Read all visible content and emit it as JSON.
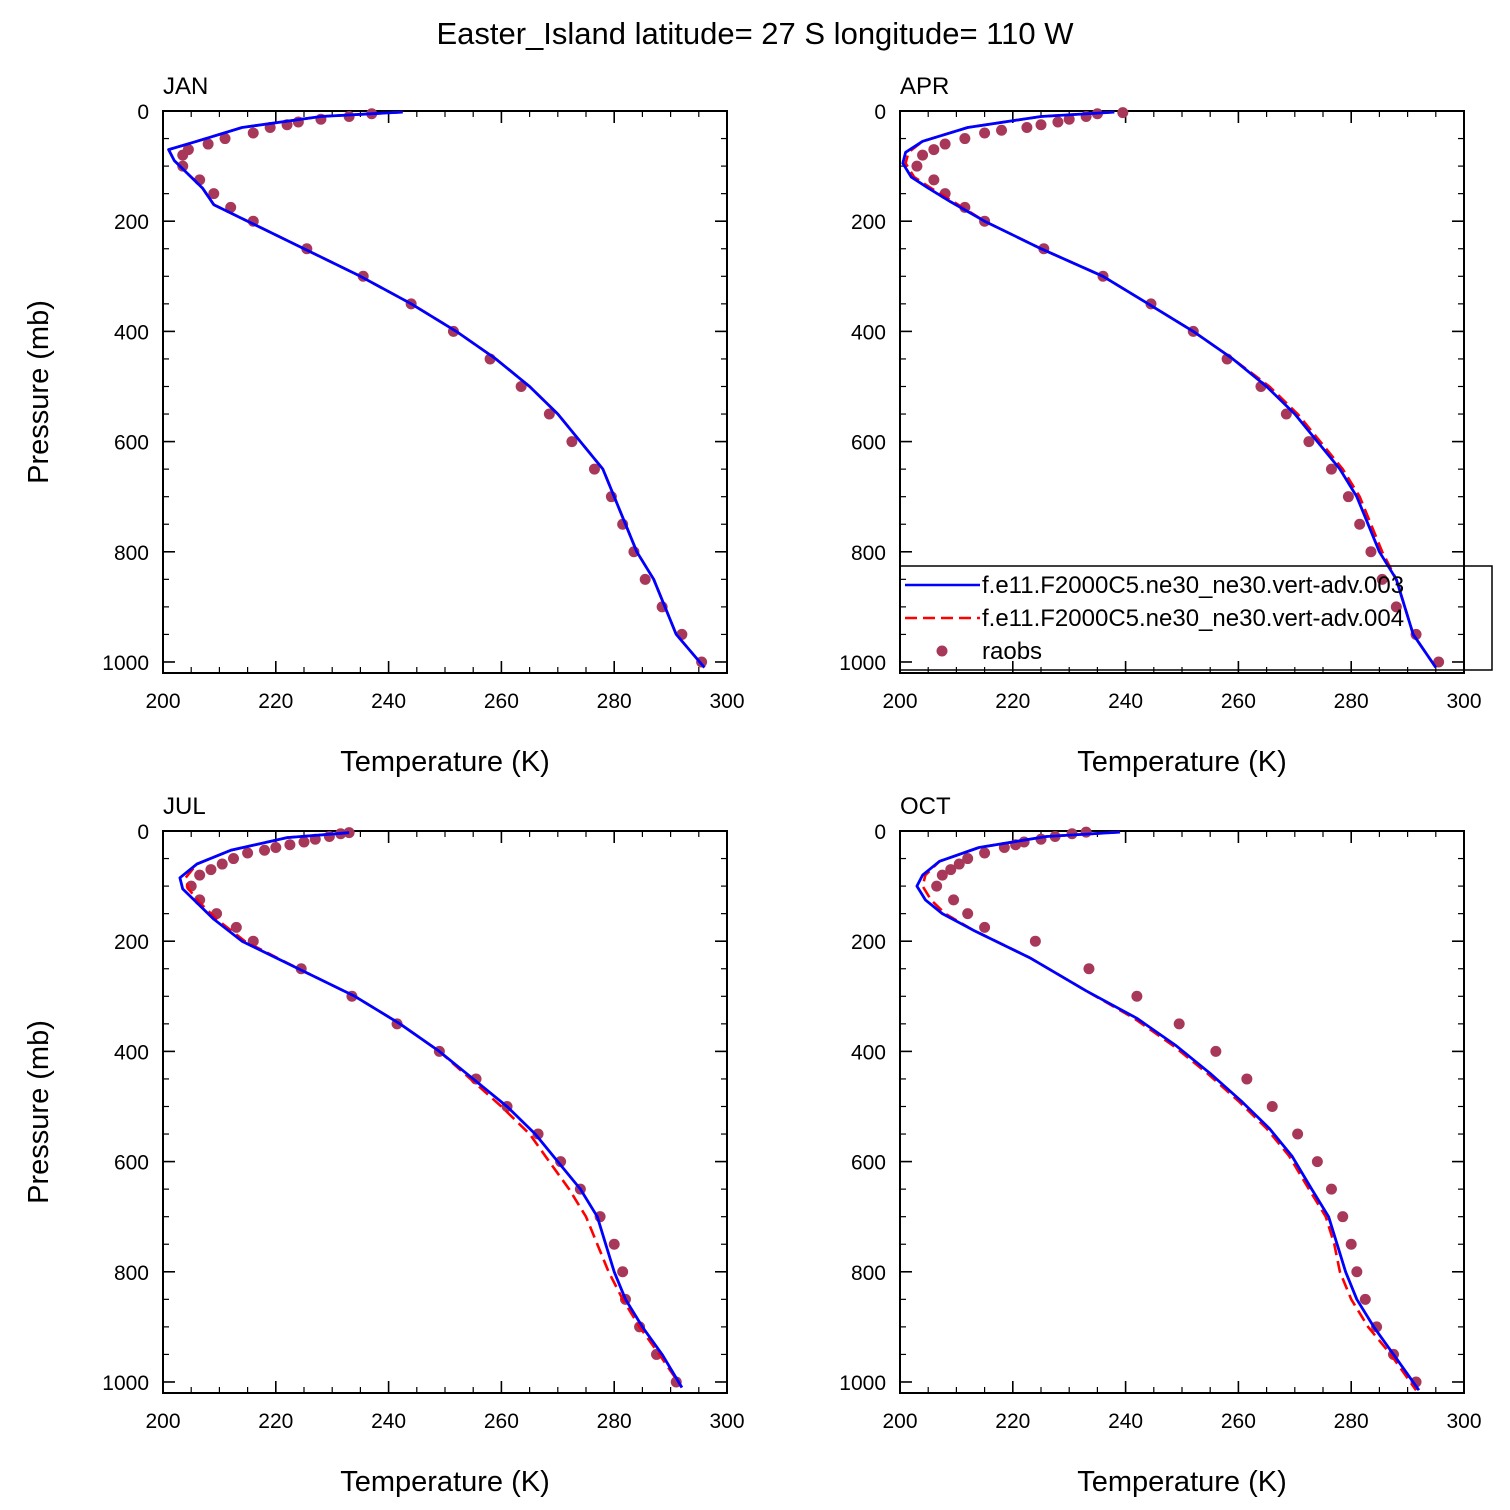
{
  "figure": {
    "title": "Easter_Island  latitude= 27 S longitude= 110 W"
  },
  "colors": {
    "model_003": "#0000ff",
    "model_004": "#ff0000",
    "raobs": "#a8385a",
    "axis": "#000000"
  },
  "legend": {
    "panel": "APR",
    "placement": "lower-right",
    "entries": [
      {
        "label": "f.e11.F2000C5.ne30_ne30.vert-adv.003",
        "style": "solid-line",
        "color": "#0000ff"
      },
      {
        "label": "f.e11.F2000C5.ne30_ne30.vert-adv.004",
        "style": "dashed-line",
        "color": "#ff0000"
      },
      {
        "label": "raobs",
        "style": "marker",
        "color": "#a8385a"
      }
    ]
  },
  "chart_data": [
    {
      "type": "line",
      "title": "JAN",
      "xlabel": "Temperature (K)",
      "ylabel": "Pressure (mb)",
      "xlim": [
        200,
        300
      ],
      "ylim": [
        1020,
        0
      ],
      "xticks": [
        200,
        220,
        240,
        260,
        280,
        300
      ],
      "yticks": [
        0,
        200,
        400,
        600,
        800,
        1000
      ],
      "series": [
        {
          "name": "f.e11.F2000C5.ne30_ne30.vert-adv.003",
          "style": "solid",
          "x": [
            242.5,
            228,
            214,
            206,
            201,
            202,
            205,
            207,
            209,
            215,
            225,
            235,
            244,
            252,
            259,
            265,
            270,
            274,
            278,
            280,
            282,
            284,
            287,
            291,
            296
          ],
          "y": [
            2,
            10,
            30,
            55,
            70,
            90,
            120,
            140,
            170,
            200,
            250,
            300,
            350,
            400,
            450,
            500,
            550,
            600,
            650,
            700,
            750,
            800,
            850,
            950,
            1010
          ]
        },
        {
          "name": "f.e11.F2000C5.ne30_ne30.vert-adv.004",
          "style": "dashed",
          "x": [
            242.5,
            228,
            214,
            206,
            201,
            202,
            205,
            207,
            209,
            215,
            225,
            235,
            244,
            252,
            259,
            265,
            270,
            274,
            278,
            280,
            282,
            284,
            287,
            291,
            296
          ],
          "y": [
            2,
            10,
            30,
            55,
            70,
            90,
            120,
            140,
            170,
            200,
            250,
            300,
            350,
            400,
            450,
            500,
            550,
            600,
            650,
            700,
            750,
            800,
            850,
            950,
            1010
          ]
        },
        {
          "name": "raobs",
          "style": "marker",
          "x": [
            237,
            233,
            228,
            224,
            222,
            219,
            216,
            211,
            208,
            204.5,
            203.5,
            203.5,
            206.5,
            209,
            212,
            216,
            225.5,
            235.5,
            244,
            251.5,
            258,
            263.5,
            268.5,
            272.5,
            276.5,
            279.5,
            281.5,
            283.5,
            285.5,
            288.5,
            292,
            295.5
          ],
          "y": [
            5,
            10,
            15,
            20,
            25,
            30,
            40,
            50,
            60,
            70,
            80,
            100,
            125,
            150,
            175,
            200,
            250,
            300,
            350,
            400,
            450,
            500,
            550,
            600,
            650,
            700,
            750,
            800,
            850,
            900,
            950,
            1000
          ]
        }
      ]
    },
    {
      "type": "line",
      "title": "APR",
      "xlabel": "Temperature (K)",
      "ylabel": "",
      "xlim": [
        200,
        300
      ],
      "ylim": [
        1020,
        0
      ],
      "xticks": [
        200,
        220,
        240,
        260,
        280,
        300
      ],
      "yticks": [
        0,
        200,
        400,
        600,
        800,
        1000
      ],
      "series": [
        {
          "name": "f.e11.F2000C5.ne30_ne30.vert-adv.003",
          "style": "solid",
          "x": [
            238,
            225,
            212,
            204,
            201,
            200.5,
            202,
            205,
            209,
            215,
            225,
            236,
            244,
            252,
            259,
            265,
            270,
            274,
            278,
            281,
            283,
            285,
            288,
            291,
            295
          ],
          "y": [
            2,
            10,
            30,
            55,
            75,
            95,
            120,
            140,
            165,
            200,
            250,
            300,
            350,
            400,
            450,
            500,
            550,
            600,
            650,
            700,
            750,
            800,
            850,
            950,
            1010
          ]
        },
        {
          "name": "f.e11.F2000C5.ne30_ne30.vert-adv.004",
          "style": "dashed",
          "x": [
            238,
            225,
            212,
            204,
            201.5,
            201,
            202.5,
            205.5,
            209.5,
            215,
            225,
            236,
            244,
            252,
            259,
            265.5,
            270.5,
            274.5,
            278.5,
            281.5,
            283.5,
            285.5,
            288,
            291,
            295
          ],
          "y": [
            2,
            10,
            30,
            55,
            75,
            95,
            120,
            140,
            165,
            200,
            250,
            300,
            350,
            400,
            450,
            500,
            550,
            600,
            650,
            700,
            750,
            800,
            850,
            950,
            1010
          ]
        },
        {
          "name": "raobs",
          "style": "marker",
          "x": [
            239.5,
            235,
            233,
            230,
            228,
            225,
            222.5,
            218,
            215,
            211.5,
            208,
            206,
            204,
            203,
            206,
            208,
            211.5,
            215,
            225.5,
            236,
            244.5,
            252,
            258,
            264,
            268.5,
            272.5,
            276.5,
            279.5,
            281.5,
            283.5,
            285.5,
            288,
            291.5,
            295.5
          ],
          "y": [
            3,
            5,
            10,
            15,
            20,
            25,
            30,
            35,
            40,
            50,
            60,
            70,
            80,
            100,
            125,
            150,
            175,
            200,
            250,
            300,
            350,
            400,
            450,
            500,
            550,
            600,
            650,
            700,
            750,
            800,
            850,
            900,
            950,
            1000
          ]
        }
      ]
    },
    {
      "type": "line",
      "title": "JUL",
      "xlabel": "Temperature (K)",
      "ylabel": "Pressure (mb)",
      "xlim": [
        200,
        300
      ],
      "ylim": [
        1020,
        0
      ],
      "xticks": [
        200,
        220,
        240,
        260,
        280,
        300
      ],
      "yticks": [
        0,
        200,
        400,
        600,
        800,
        1000
      ],
      "series": [
        {
          "name": "f.e11.F2000C5.ne30_ne30.vert-adv.003",
          "style": "solid",
          "x": [
            233,
            222,
            212,
            206,
            203,
            203.5,
            206,
            209,
            214,
            224,
            234,
            242,
            249,
            255,
            261,
            266,
            270,
            274,
            277,
            278.5,
            280,
            282,
            285,
            288.5,
            292
          ],
          "y": [
            3,
            12,
            35,
            60,
            85,
            105,
            130,
            160,
            200,
            250,
            300,
            350,
            400,
            450,
            500,
            550,
            600,
            650,
            700,
            750,
            800,
            850,
            900,
            950,
            1010
          ]
        },
        {
          "name": "f.e11.F2000C5.ne30_ne30.vert-adv.004",
          "style": "dashed",
          "x": [
            233,
            222,
            212,
            206,
            204,
            204.5,
            206.5,
            209.5,
            214.5,
            224,
            234,
            242,
            249,
            254.5,
            260,
            265,
            268.5,
            272,
            275,
            277,
            279,
            281.5,
            284.5,
            288,
            292
          ],
          "y": [
            3,
            12,
            35,
            60,
            85,
            105,
            130,
            160,
            200,
            250,
            300,
            350,
            400,
            450,
            500,
            550,
            600,
            650,
            700,
            750,
            800,
            850,
            900,
            950,
            1010
          ]
        },
        {
          "name": "raobs",
          "style": "marker",
          "x": [
            233,
            231.5,
            229.5,
            227,
            225,
            222.5,
            220,
            218,
            215,
            212.5,
            210.5,
            208.5,
            206.5,
            205,
            206.5,
            209.5,
            213,
            216,
            224.5,
            233.5,
            241.5,
            249,
            255.5,
            261,
            266.5,
            270.5,
            274,
            277.5,
            280,
            281.5,
            282,
            284.5,
            287.5,
            291
          ],
          "y": [
            3,
            5,
            10,
            15,
            20,
            25,
            30,
            35,
            40,
            50,
            60,
            70,
            80,
            100,
            125,
            150,
            175,
            200,
            250,
            300,
            350,
            400,
            450,
            500,
            550,
            600,
            650,
            700,
            750,
            800,
            850,
            900,
            950,
            1000
          ]
        }
      ]
    },
    {
      "type": "line",
      "title": "OCT",
      "xlabel": "Temperature (K)",
      "ylabel": "",
      "xlim": [
        200,
        300
      ],
      "ylim": [
        1020,
        0
      ],
      "xticks": [
        200,
        220,
        240,
        260,
        280,
        300
      ],
      "yticks": [
        0,
        200,
        400,
        600,
        800,
        1000
      ],
      "series": [
        {
          "name": "f.e11.F2000C5.ne30_ne30.vert-adv.003",
          "style": "solid",
          "x": [
            239,
            226,
            214,
            207,
            204,
            203,
            204.5,
            207.5,
            213,
            223,
            233,
            242,
            249,
            255,
            260.5,
            265.5,
            269.5,
            273,
            276,
            277.5,
            279,
            281,
            284,
            287.5,
            292
          ],
          "y": [
            2,
            10,
            30,
            55,
            80,
            100,
            125,
            150,
            180,
            230,
            290,
            340,
            390,
            440,
            490,
            540,
            590,
            650,
            700,
            750,
            800,
            850,
            900,
            950,
            1015
          ]
        },
        {
          "name": "f.e11.F2000C5.ne30_ne30.vert-adv.004",
          "style": "dashed",
          "x": [
            239,
            226,
            214,
            207,
            204.5,
            204,
            205.5,
            208,
            213,
            223,
            233,
            241.5,
            248.5,
            254.5,
            260,
            265,
            269,
            272.5,
            275.5,
            277,
            278,
            280,
            283,
            287,
            291.5
          ],
          "y": [
            2,
            10,
            30,
            55,
            80,
            100,
            125,
            150,
            180,
            230,
            290,
            340,
            390,
            440,
            490,
            540,
            590,
            650,
            700,
            750,
            800,
            850,
            900,
            950,
            1015
          ]
        },
        {
          "name": "raobs",
          "style": "marker",
          "x": [
            233,
            230.5,
            227.5,
            225,
            222,
            220.5,
            218.5,
            215,
            212,
            210.5,
            209,
            207.5,
            206.5,
            209.5,
            212,
            215,
            224,
            233.5,
            242,
            249.5,
            256,
            261.5,
            266,
            270.5,
            274,
            276.5,
            278.5,
            280,
            281,
            282.5,
            284.5,
            287.5,
            291.5
          ],
          "y": [
            2,
            5,
            10,
            15,
            20,
            25,
            30,
            40,
            50,
            60,
            70,
            80,
            100,
            125,
            150,
            175,
            200,
            250,
            300,
            350,
            400,
            450,
            500,
            550,
            600,
            650,
            700,
            750,
            800,
            850,
            900,
            950,
            1000
          ]
        }
      ]
    }
  ]
}
